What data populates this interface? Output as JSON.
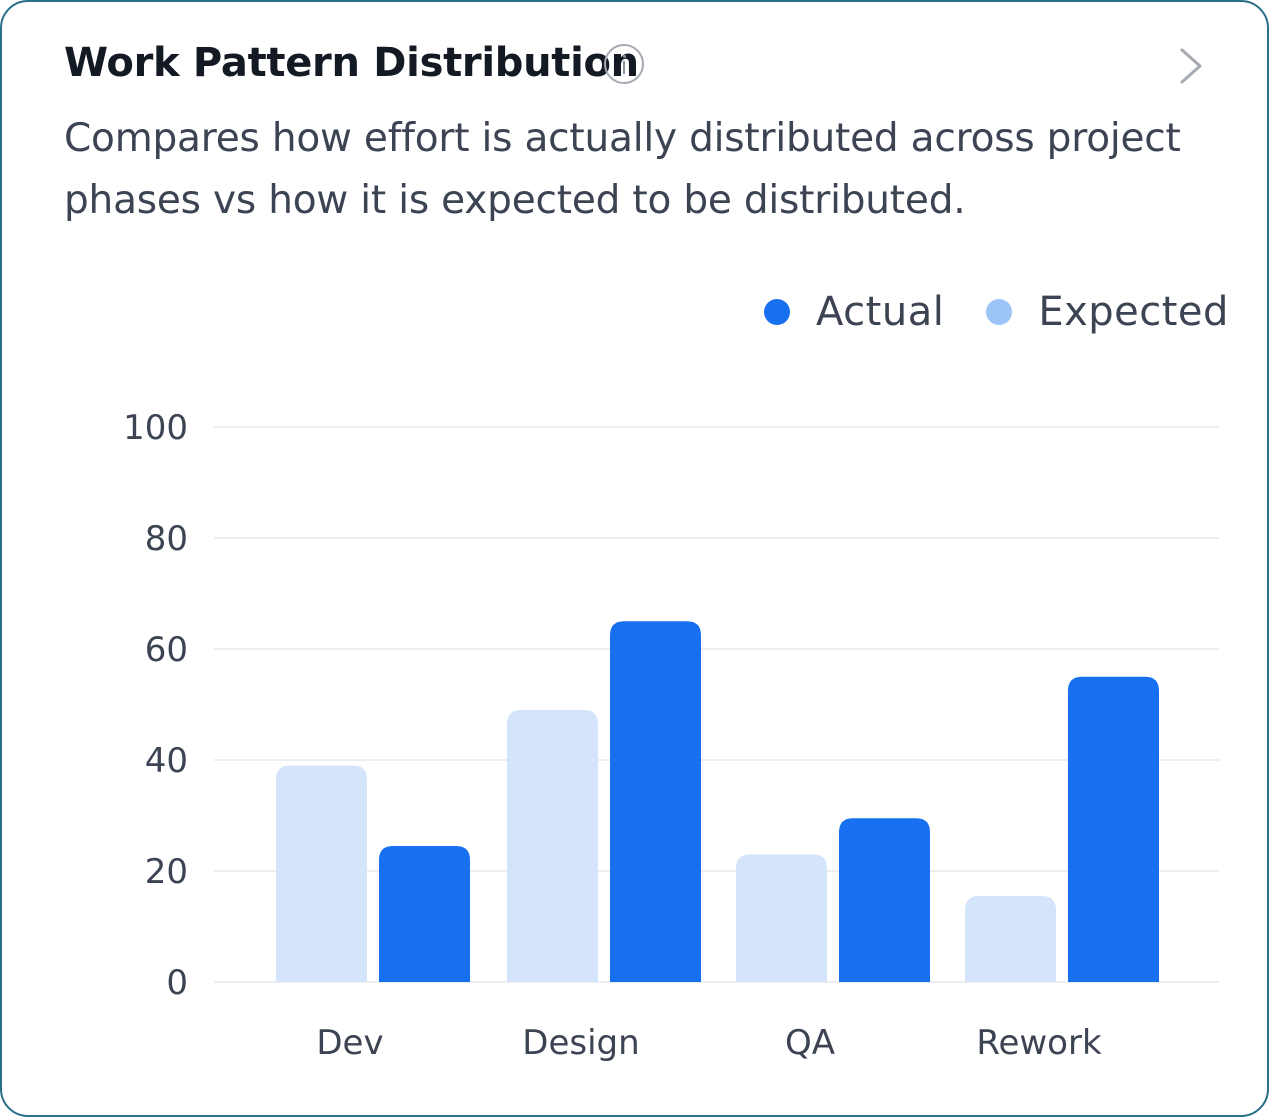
{
  "card": {
    "title": "Work Pattern Distribution",
    "subtitle": "Compares how effort is actually distributed across project phases vs how it is expected to be distributed."
  },
  "icons": {
    "info": "info-icon",
    "navigate": "chevron-right-icon"
  },
  "chart_data": {
    "type": "bar",
    "categories": [
      "Dev",
      "Design",
      "QA",
      "Rework"
    ],
    "series": [
      {
        "name": "Expected",
        "color": "#d4e4fb",
        "values": [
          39,
          49,
          23,
          15.5
        ]
      },
      {
        "name": "Actual",
        "color": "#1670ef",
        "values": [
          24.5,
          65,
          29.5,
          55
        ]
      }
    ],
    "ylim": [
      0,
      100
    ],
    "yticks": [
      0,
      20,
      40,
      60,
      80,
      100
    ],
    "grid": true,
    "legend": {
      "position": "top-right",
      "items": [
        {
          "label": "Actual",
          "color": "#1670ef"
        },
        {
          "label": "Expected",
          "color": "#9cc4f7"
        }
      ]
    },
    "xlabel": "",
    "ylabel": ""
  }
}
